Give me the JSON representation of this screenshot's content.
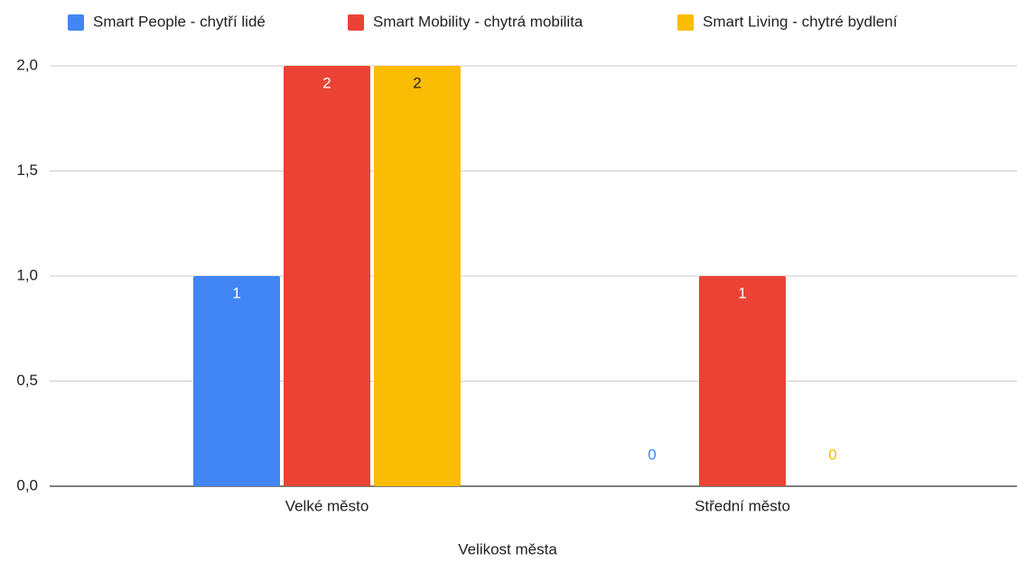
{
  "chart_data": {
    "type": "bar",
    "x_label": "Velikost města",
    "categories": [
      "Velké město",
      "Střední město"
    ],
    "series": [
      {
        "name": "Smart People - chytří lidé",
        "color": "#4285f4",
        "values": [
          1,
          0
        ]
      },
      {
        "name": "Smart Mobility - chytrá mobilita",
        "color": "#ea4335",
        "values": [
          2,
          1
        ]
      },
      {
        "name": "Smart Living - chytré bydlení",
        "color": "#fbbc04",
        "values": [
          2,
          0
        ]
      }
    ],
    "ylim": [
      0,
      2
    ],
    "yticks": [
      {
        "value": 0,
        "label": "0,0"
      },
      {
        "value": 0.5,
        "label": "0,5"
      },
      {
        "value": 1,
        "label": "1,0"
      },
      {
        "value": 1.5,
        "label": "1,5"
      },
      {
        "value": 2,
        "label": "2,0"
      }
    ],
    "grid": true,
    "legend": "top"
  }
}
